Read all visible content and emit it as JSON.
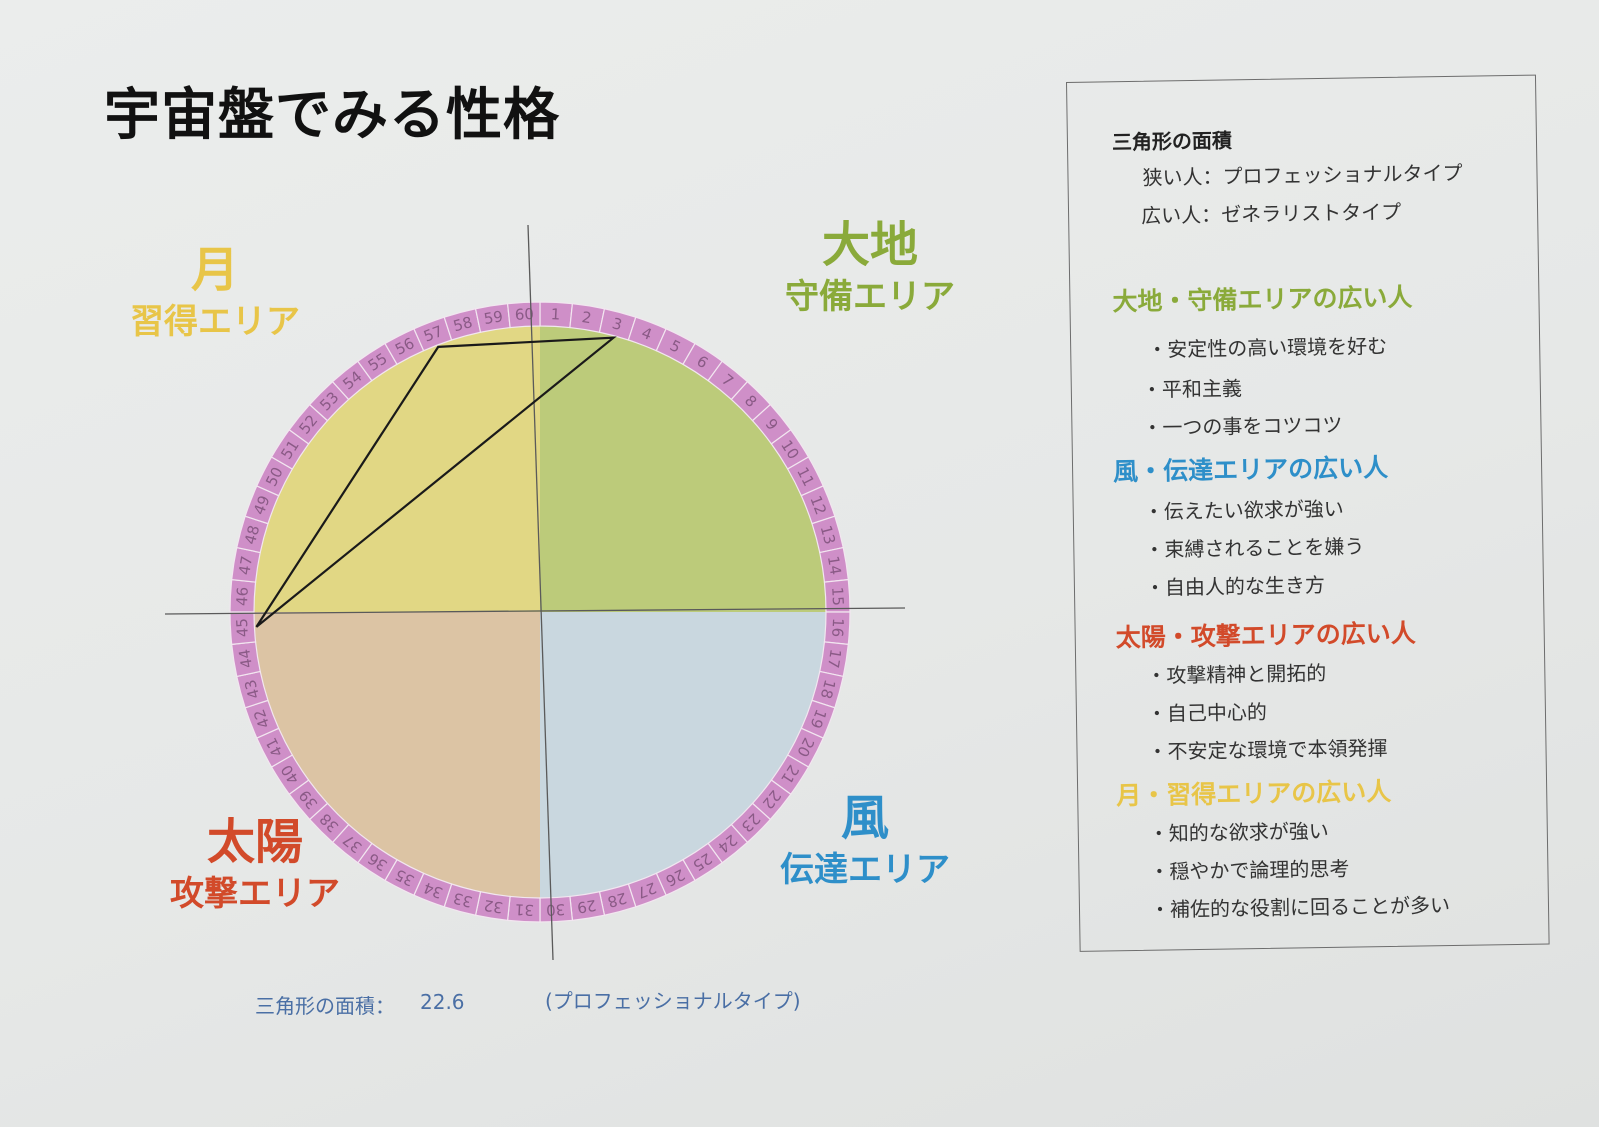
{
  "title": "宇宙盤でみる性格",
  "quadrants": {
    "earth": {
      "name": "大地",
      "area": "守備エリア",
      "color": "#8aaa3a"
    },
    "moon": {
      "name": "月",
      "area": "習得エリア",
      "color": "#e8c548"
    },
    "sun": {
      "name": "太陽",
      "area": "攻撃エリア",
      "color": "#d24a2a"
    },
    "wind": {
      "name": "風",
      "area": "伝達エリア",
      "color": "#2e8fc9"
    }
  },
  "wheel": {
    "numbers": [
      "1",
      "2",
      "3",
      "4",
      "5",
      "6",
      "7",
      "8",
      "9",
      "10",
      "11",
      "12",
      "13",
      "14",
      "15",
      "16",
      "17",
      "18",
      "19",
      "20",
      "21",
      "22",
      "23",
      "24",
      "25",
      "26",
      "27",
      "28",
      "29",
      "30",
      "31",
      "32",
      "33",
      "34",
      "35",
      "36",
      "37",
      "38",
      "39",
      "40",
      "41",
      "42",
      "43",
      "44",
      "45",
      "46",
      "47",
      "48",
      "49",
      "50",
      "51",
      "52",
      "53",
      "54",
      "55",
      "56",
      "57",
      "58",
      "59",
      "60"
    ],
    "triangle_vertices": [
      57,
      3,
      45
    ]
  },
  "area_label": "三角形の面積：",
  "area_value": "22.6",
  "type_label": "(プロフェッショナルタイプ)",
  "legend": {
    "heading": "三角形の面積",
    "narrow": "狭い人：プロフェッショナルタイプ",
    "wide": "広い人：ゼネラリストタイプ",
    "sections": [
      {
        "title": "大地・守備エリアの広い人",
        "color": "#8aaa3a",
        "items": [
          "・安定性の高い環境を好む",
          "・平和主義",
          "・一つの事をコツコツ"
        ]
      },
      {
        "title": "風・伝達エリアの広い人",
        "color": "#2e8fc9",
        "items": [
          "・伝えたい欲求が強い",
          "・束縛されることを嫌う",
          "・自由人的な生き方"
        ]
      },
      {
        "title": "太陽・攻撃エリアの広い人",
        "color": "#d24a2a",
        "items": [
          "・攻撃精神と開拓的",
          "・自己中心的",
          "・不安定な環境で本領発揮"
        ]
      },
      {
        "title": "月・習得エリアの広い人",
        "color": "#e8c548",
        "items": [
          "・知的な欲求が強い",
          "・穏やかで論理的思考",
          "・補佐的な役割に回ることが多い"
        ]
      }
    ]
  }
}
